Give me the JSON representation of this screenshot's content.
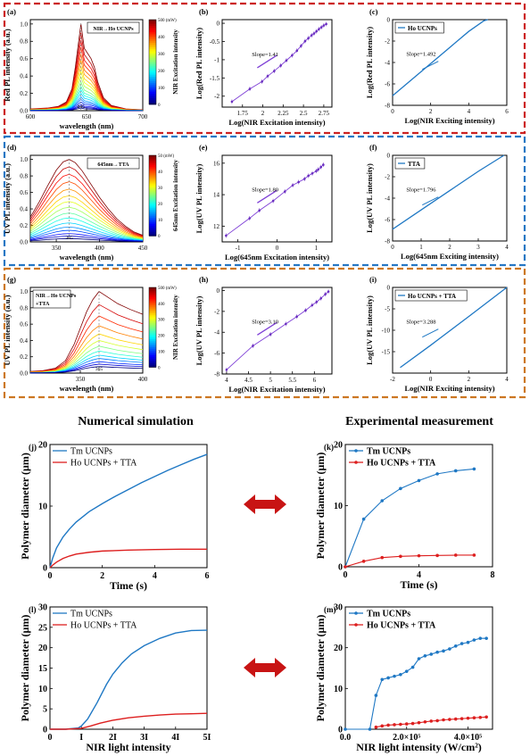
{
  "section_titles": {
    "left": "Numerical simulation",
    "right": "Experimental measurement"
  },
  "colors": {
    "red_box": "#cc2222",
    "blue_box": "#2577c4",
    "orange_box": "#cc7722",
    "fit": "#7e3fd6",
    "point": "#6a2ec0",
    "blue": "#1f78c4",
    "red": "#dd1f1f",
    "arrow": "#c81414",
    "slope_text": "#9b3ac9",
    "slope_text_blue": "#2070b0"
  },
  "chart_data": [
    {
      "id": "a",
      "panel_label": "(a)",
      "type": "line",
      "legend": "NIR→Ho UCNPs",
      "xlabel": "wavelength (nm)",
      "ylabel": "Red PL intensity (a.u.)",
      "xlim": [
        600,
        700
      ],
      "ylim": [
        0,
        1.05
      ],
      "xticks": [
        600,
        650,
        700
      ],
      "yticks": [
        0.0,
        0.2,
        0.4,
        0.6,
        0.8,
        1.0
      ],
      "peak_label": "645",
      "peak_x": 645,
      "x": [
        600,
        615,
        625,
        632,
        637,
        640,
        643,
        645,
        648,
        651,
        654,
        657,
        660,
        665,
        672,
        685,
        700
      ],
      "y_peak_shape": [
        0.02,
        0.03,
        0.05,
        0.1,
        0.25,
        0.5,
        0.8,
        1.0,
        0.72,
        0.66,
        0.6,
        0.5,
        0.33,
        0.15,
        0.06,
        0.02,
        0.01
      ],
      "curve_scales": [
        1.0,
        0.9,
        0.81,
        0.73,
        0.65,
        0.58,
        0.51,
        0.45,
        0.39,
        0.33,
        0.28,
        0.24,
        0.2,
        0.16,
        0.13,
        0.1,
        0.07,
        0.05,
        0.03
      ],
      "colorbar": {
        "label": "NIR Excitation intensity",
        "unit": "(mW)",
        "ticks": [
          0,
          100,
          200,
          300,
          400,
          500
        ]
      }
    },
    {
      "id": "b",
      "panel_label": "(b)",
      "type": "scatter",
      "slope_label": "Slope=1.41",
      "xlabel": "Log(NIR Excitation intensity)",
      "ylabel": "Log(Red PL intensity)",
      "xlim": [
        1.5,
        2.85
      ],
      "ylim": [
        -2.3,
        0.1
      ],
      "xticks": [
        1.75,
        2.0,
        2.25,
        2.5,
        2.75
      ],
      "yticks": [
        -2,
        -1.5,
        -1,
        -0.5,
        0
      ],
      "x": [
        1.62,
        1.84,
        1.99,
        2.06,
        2.14,
        2.22,
        2.29,
        2.36,
        2.42,
        2.47,
        2.52,
        2.56,
        2.6,
        2.63,
        2.66,
        2.69,
        2.72,
        2.75,
        2.78
      ],
      "y": [
        -2.15,
        -1.8,
        -1.6,
        -1.45,
        -1.31,
        -1.16,
        -1.02,
        -0.88,
        -0.75,
        -0.62,
        -0.49,
        -0.41,
        -0.33,
        -0.28,
        -0.22,
        -0.16,
        -0.11,
        -0.06,
        -0.02
      ]
    },
    {
      "id": "c",
      "panel_label": "(c)",
      "type": "line",
      "legend": "Ho UCNPs",
      "slope_label": "Slope=1.492",
      "xlabel": "Log(NIR Exciting intensity)",
      "ylabel": "Log(Red PL intensity)",
      "xlim": [
        0,
        6
      ],
      "ylim": [
        -8,
        0
      ],
      "xticks": [
        0,
        2,
        4,
        6
      ],
      "yticks": [
        0,
        -2,
        -4,
        -6,
        -8
      ],
      "x": [
        0,
        1,
        2,
        3,
        4,
        4.8,
        5.0
      ],
      "y": [
        -7.1,
        -5.6,
        -4.1,
        -2.6,
        -1.1,
        -0.1,
        0
      ]
    },
    {
      "id": "d",
      "panel_label": "(d)",
      "type": "line",
      "legend": "645nm→TTA",
      "xlabel": "wavelength (nm)",
      "ylabel": "UV PL intensity (a.u.)",
      "xlim": [
        320,
        450
      ],
      "ylim": [
        0,
        1.05
      ],
      "xticks": [
        350,
        400,
        450
      ],
      "yticks": [
        0.0,
        0.2,
        0.4,
        0.6,
        0.8,
        1.0
      ],
      "peak_label": "365",
      "peak_x": 365,
      "x": [
        320,
        330,
        340,
        350,
        358,
        365,
        372,
        380,
        390,
        400,
        410,
        420,
        430,
        440,
        450
      ],
      "y_peak_shape": [
        0.3,
        0.48,
        0.68,
        0.87,
        0.97,
        1.0,
        0.96,
        0.86,
        0.7,
        0.54,
        0.4,
        0.28,
        0.19,
        0.12,
        0.08
      ],
      "curve_scales": [
        1.0,
        0.91,
        0.82,
        0.73,
        0.64,
        0.56,
        0.49,
        0.42,
        0.35,
        0.29,
        0.23,
        0.18,
        0.14,
        0.1,
        0.07,
        0.04
      ],
      "colorbar": {
        "label": "645nm Excitation intensity",
        "unit": "(mW)",
        "ticks": [
          0,
          10,
          20,
          30,
          40,
          50
        ]
      }
    },
    {
      "id": "e",
      "panel_label": "(e)",
      "type": "scatter",
      "slope_label": "Slope=1.80",
      "xlabel": "Log(645nm Excitation intensity)",
      "ylabel": "Log(UV PL intensity)",
      "xlim": [
        -1.4,
        1.4
      ],
      "ylim": [
        11,
        16.5
      ],
      "xticks": [
        -1,
        0,
        1
      ],
      "yticks": [
        12,
        14,
        16
      ],
      "x": [
        -1.3,
        -0.7,
        -0.45,
        -0.1,
        0.2,
        0.4,
        0.55,
        0.7,
        0.8,
        0.9,
        1.0,
        1.05,
        1.12,
        1.18
      ],
      "y": [
        11.4,
        12.5,
        13.0,
        13.6,
        14.2,
        14.6,
        14.8,
        15.0,
        15.2,
        15.35,
        15.5,
        15.6,
        15.75,
        15.9
      ]
    },
    {
      "id": "f",
      "panel_label": "(f)",
      "type": "line",
      "legend": "TTA",
      "slope_label": "Slope=1.796",
      "xlabel": "Log(645nm Exciting intensity)",
      "ylabel": "Log(UV PL intensity)",
      "xlim": [
        0,
        4
      ],
      "ylim": [
        -8,
        0
      ],
      "xticks": [
        0,
        1,
        2,
        3,
        4
      ],
      "yticks": [
        0,
        -2,
        -4,
        -6,
        -8
      ],
      "x": [
        0,
        1,
        2,
        3,
        3.6,
        3.9
      ],
      "y": [
        -6.9,
        -5.1,
        -3.3,
        -1.5,
        -0.5,
        0
      ]
    },
    {
      "id": "g",
      "panel_label": "(g)",
      "type": "line",
      "legend": "NIR→Ho UCNPs+TTA",
      "xlabel": "wavelength (nm)",
      "ylabel": "UV PL intensity (a.u.)",
      "xlim": [
        310,
        400
      ],
      "ylim": [
        0,
        1.05
      ],
      "xticks": [
        350,
        400
      ],
      "yticks": [
        0.0,
        0.2,
        0.4,
        0.6,
        0.8,
        1.0
      ],
      "peak_label": "365",
      "peak_x": 365,
      "x": [
        310,
        320,
        330,
        338,
        345,
        350,
        355,
        360,
        365,
        372,
        380,
        390,
        400
      ],
      "y_peak_shape": [
        0.02,
        0.03,
        0.06,
        0.15,
        0.35,
        0.55,
        0.75,
        0.9,
        1.0,
        0.93,
        0.85,
        0.78,
        0.72
      ],
      "curve_scales": [
        1.0,
        0.84,
        0.7,
        0.58,
        0.48,
        0.4,
        0.33,
        0.27,
        0.22,
        0.18,
        0.14,
        0.11,
        0.08
      ],
      "colorbar": {
        "label": "NIR Excitation intensity",
        "unit": "(mW)",
        "ticks": [
          0,
          100,
          200,
          300,
          400,
          500
        ]
      }
    },
    {
      "id": "h",
      "panel_label": "(h)",
      "type": "scatter",
      "slope_label": "Slope=3.10",
      "xlabel": "Log(NIR Excitation intensity)",
      "ylabel": "Log(UV PL intensity)",
      "xlim": [
        3.9,
        6.4
      ],
      "ylim": [
        -8,
        0.3
      ],
      "xticks": [
        4.0,
        4.5,
        5.0,
        5.5,
        6.0,
        6.5
      ],
      "yticks": [
        -8,
        -6,
        -4,
        -2,
        0
      ],
      "x": [
        4.0,
        4.6,
        5.0,
        5.35,
        5.6,
        5.8,
        5.95,
        6.05,
        6.15,
        6.25,
        6.32
      ],
      "y": [
        -7.6,
        -5.3,
        -4.2,
        -3.2,
        -2.5,
        -1.9,
        -1.4,
        -1.1,
        -0.75,
        -0.35,
        -0.1
      ]
    },
    {
      "id": "i",
      "panel_label": "(i)",
      "type": "line",
      "legend": "Ho UCNPs + TTA",
      "slope_label": "Slope=3.288",
      "xlabel": "Log(NIR Exciting intensity)",
      "ylabel": "Log(UV PL intensity)",
      "xlim": [
        -2,
        4
      ],
      "ylim": [
        -20,
        0
      ],
      "xticks": [
        -2,
        0,
        2,
        4
      ],
      "yticks": [
        0,
        -5,
        -10,
        -15
      ],
      "x": [
        -1.6,
        0,
        2,
        4
      ],
      "y": [
        -18.7,
        -13.5,
        -6.8,
        0
      ]
    },
    {
      "id": "j",
      "panel_label": "(j)",
      "type": "line",
      "xlabel": "Time (s)",
      "ylabel": "Polymer diameter (μm)",
      "xlim": [
        0,
        6
      ],
      "ylim": [
        0,
        20
      ],
      "xticks": [
        0,
        2,
        4,
        6
      ],
      "yticks": [
        0,
        10,
        20
      ],
      "series": [
        {
          "name": "Tm UCNPs",
          "color": "blue",
          "x": [
            0,
            0.1,
            0.25,
            0.5,
            0.75,
            1,
            1.5,
            2,
            2.5,
            3,
            3.5,
            4,
            4.5,
            5,
            5.5,
            6
          ],
          "y": [
            0,
            1.5,
            3.2,
            5.0,
            6.3,
            7.4,
            9.1,
            10.4,
            11.6,
            12.7,
            13.8,
            14.8,
            15.8,
            16.7,
            17.6,
            18.4
          ]
        },
        {
          "name": "Ho UCNPs + TTA",
          "color": "red",
          "x": [
            0,
            0.1,
            0.25,
            0.5,
            0.75,
            1,
            1.5,
            2,
            3,
            4,
            5,
            6
          ],
          "y": [
            0,
            0.4,
            0.9,
            1.5,
            1.9,
            2.2,
            2.5,
            2.7,
            2.85,
            2.95,
            3.0,
            3.0
          ]
        }
      ]
    },
    {
      "id": "k",
      "panel_label": "(k)",
      "type": "line",
      "xlabel": "Time (s)",
      "ylabel": "Polymer diameter (μm)",
      "xlim": [
        0,
        8
      ],
      "ylim": [
        0,
        20
      ],
      "xticks": [
        0,
        4,
        8
      ],
      "yticks": [
        0,
        10,
        20
      ],
      "series": [
        {
          "name": "Tm UCNPs",
          "color": "blue",
          "x": [
            0,
            1,
            2,
            3,
            4,
            5,
            6,
            7
          ],
          "y": [
            0,
            7.8,
            10.8,
            12.8,
            14.1,
            15.2,
            15.7,
            16.0
          ]
        },
        {
          "name": "Ho UCNPs + TTA",
          "color": "red",
          "x": [
            0,
            1,
            2,
            3,
            4,
            5,
            6,
            7
          ],
          "y": [
            0,
            0.9,
            1.5,
            1.7,
            1.8,
            1.85,
            1.9,
            1.9
          ]
        }
      ]
    },
    {
      "id": "l",
      "panel_label": "(l)",
      "type": "line",
      "xlabel": "NIR light intensity",
      "ylabel": "Polymer diameter (μm)",
      "xlim": [
        0,
        5
      ],
      "ylim": [
        0,
        30
      ],
      "xticks": [
        0,
        1,
        2,
        3,
        4,
        5
      ],
      "xtick_labels": [
        "0",
        "I",
        "2I",
        "3I",
        "4I",
        "5I"
      ],
      "yticks": [
        0,
        5,
        10,
        15,
        20,
        25,
        30
      ],
      "series": [
        {
          "name": "Tm UCNPs",
          "color": "blue",
          "x": [
            0,
            0.5,
            0.9,
            1.0,
            1.2,
            1.5,
            1.8,
            2.0,
            2.3,
            2.6,
            3.0,
            3.5,
            4.0,
            4.5,
            5.0
          ],
          "y": [
            0,
            0,
            0.3,
            0.8,
            2.5,
            6.5,
            11,
            13.5,
            16.3,
            18.5,
            20.5,
            22.3,
            23.6,
            24.2,
            24.3
          ]
        },
        {
          "name": "Ho UCNPs + TTA",
          "color": "red",
          "x": [
            0,
            0.5,
            1.0,
            1.3,
            1.6,
            2.0,
            2.5,
            3.0,
            3.5,
            4.0,
            4.5,
            5.0
          ],
          "y": [
            0,
            0,
            0.2,
            0.8,
            1.5,
            2.2,
            2.8,
            3.2,
            3.5,
            3.7,
            3.8,
            3.9
          ]
        }
      ]
    },
    {
      "id": "m",
      "panel_label": "(m)",
      "type": "line",
      "xlabel": "NIR light intensity (W/cm²)",
      "ylabel": "Polymer diameter (μm)",
      "xlim": [
        0,
        480000
      ],
      "ylim": [
        0,
        30
      ],
      "xticks": [
        0,
        200000,
        400000
      ],
      "xtick_labels": [
        "0.0",
        "2.0×10⁵",
        "4.0×10⁵"
      ],
      "yticks": [
        0,
        10,
        20,
        30
      ],
      "series": [
        {
          "name": "Tm UCNPs",
          "color": "blue",
          "x": [
            0,
            80000,
            100000,
            120000,
            140000,
            160000,
            180000,
            200000,
            220000,
            240000,
            260000,
            280000,
            300000,
            320000,
            340000,
            360000,
            380000,
            400000,
            420000,
            440000,
            460000
          ],
          "y": [
            0,
            0,
            8.3,
            12.2,
            12.6,
            13.0,
            13.4,
            14.2,
            15.2,
            17.3,
            18.0,
            18.4,
            18.9,
            19.2,
            19.7,
            20.4,
            21.0,
            21.3,
            21.9,
            22.3,
            22.3
          ]
        },
        {
          "name": "Ho UCNPs + TTA",
          "color": "red",
          "x": [
            100000,
            120000,
            140000,
            160000,
            180000,
            200000,
            220000,
            240000,
            260000,
            280000,
            300000,
            320000,
            340000,
            360000,
            380000,
            400000,
            420000,
            440000,
            460000
          ],
          "y": [
            0.5,
            0.8,
            1.0,
            1.1,
            1.2,
            1.3,
            1.4,
            1.6,
            1.8,
            2.0,
            2.1,
            2.3,
            2.4,
            2.5,
            2.6,
            2.7,
            2.8,
            2.9,
            3.0
          ]
        }
      ]
    }
  ]
}
